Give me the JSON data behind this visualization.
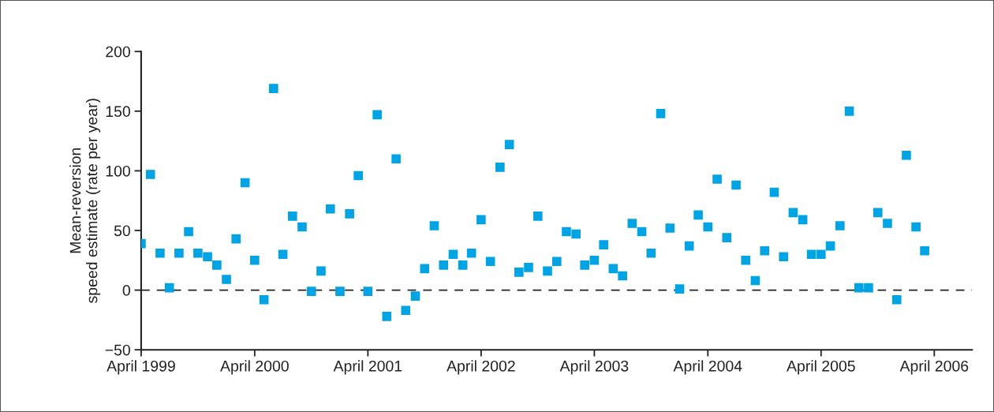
{
  "chart_data": {
    "type": "scatter",
    "ylabel": "Mean-reversion\nspeed estimate (rate per year)",
    "x": [
      "1999-04",
      "1999-05",
      "1999-06",
      "1999-07",
      "1999-08",
      "1999-09",
      "1999-10",
      "1999-11",
      "1999-12",
      "2000-01",
      "2000-02",
      "2000-03",
      "2000-04",
      "2000-05",
      "2000-06",
      "2000-07",
      "2000-08",
      "2000-09",
      "2000-10",
      "2000-11",
      "2000-12",
      "2001-01",
      "2001-02",
      "2001-03",
      "2001-04",
      "2001-05",
      "2001-06",
      "2001-07",
      "2001-08",
      "2001-09",
      "2001-10",
      "2001-11",
      "2001-12",
      "2002-01",
      "2002-02",
      "2002-03",
      "2002-04",
      "2002-05",
      "2002-06",
      "2002-07",
      "2002-08",
      "2002-09",
      "2002-10",
      "2002-11",
      "2002-12",
      "2003-01",
      "2003-02",
      "2003-03",
      "2003-04",
      "2003-05",
      "2003-06",
      "2003-07",
      "2003-08",
      "2003-09",
      "2003-10",
      "2003-11",
      "2003-12",
      "2004-01",
      "2004-02",
      "2004-03",
      "2004-04",
      "2004-05",
      "2004-06",
      "2004-07",
      "2004-08",
      "2004-09",
      "2004-10",
      "2004-11",
      "2004-12",
      "2005-01",
      "2005-02",
      "2005-03",
      "2005-04",
      "2005-05",
      "2005-06",
      "2005-07",
      "2005-08",
      "2005-09",
      "2005-10",
      "2005-11",
      "2005-12",
      "2006-01",
      "2006-02",
      "2006-03"
    ],
    "series": [
      {
        "color": "#00a3e4",
        "values": [
          39,
          97,
          31,
          2,
          31,
          49,
          31,
          28,
          21,
          9,
          43,
          90,
          25,
          -8,
          169,
          30,
          62,
          53,
          -1,
          16,
          68,
          -1,
          64,
          96,
          -1,
          147,
          -22,
          110,
          -17,
          -5,
          18,
          54,
          21,
          30,
          21,
          31,
          59,
          24,
          103,
          122,
          15,
          19,
          62,
          16,
          24,
          49,
          47,
          21,
          25,
          38,
          18,
          12,
          56,
          49,
          31,
          148,
          52,
          1,
          37,
          63,
          53,
          93,
          44,
          88,
          25,
          8,
          33,
          82,
          28,
          65,
          59,
          30,
          30,
          37,
          54,
          150,
          2,
          2,
          65,
          56,
          -8,
          113,
          53,
          33
        ]
      }
    ],
    "marker": "square",
    "xlim": [
      "1999-04",
      "2006-08"
    ],
    "xticks": [
      {
        "value": "1999-04",
        "label": "April 1999"
      },
      {
        "value": "2000-04",
        "label": "April 2000"
      },
      {
        "value": "2001-04",
        "label": "April 2001"
      },
      {
        "value": "2002-04",
        "label": "April 2002"
      },
      {
        "value": "2003-04",
        "label": "April 2003"
      },
      {
        "value": "2004-04",
        "label": "April 2004"
      },
      {
        "value": "2005-04",
        "label": "April 2005"
      },
      {
        "value": "2006-04",
        "label": "April 2006"
      }
    ],
    "ylim": [
      -50,
      200
    ],
    "yticks": [
      -50,
      0,
      50,
      100,
      150,
      200
    ],
    "ref_lines": [
      {
        "axis": "y",
        "value": 0,
        "color": "#222222",
        "line_style": "dashed"
      }
    ],
    "grid": false,
    "legend": false
  }
}
